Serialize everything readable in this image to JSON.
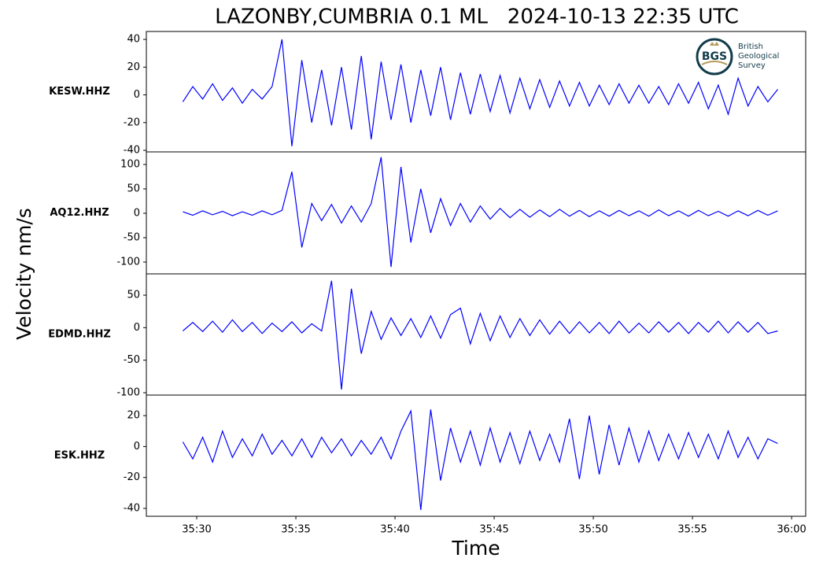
{
  "chart_data": {
    "type": "line",
    "title": "LAZONBY,CUMBRIA 0.1 ML   2024-10-13 22:35 UTC",
    "y_label": "Velocity nm/s",
    "x_label": "Time",
    "logo": {
      "mark": "BGS",
      "lines": [
        "British",
        "Geological",
        "Survey"
      ]
    },
    "xlim": [
      27.46,
      60.71
    ],
    "xticks": [
      {
        "value": 30,
        "label": "35:30"
      },
      {
        "value": 35,
        "label": "35:35"
      },
      {
        "value": 40,
        "label": "35:40"
      },
      {
        "value": 45,
        "label": "35:45"
      },
      {
        "value": 50,
        "label": "35:50"
      },
      {
        "value": 55,
        "label": "35:55"
      },
      {
        "value": 60,
        "label": "36:00"
      }
    ],
    "x": [
      29.3,
      29.8,
      30.3,
      30.8,
      31.3,
      31.8,
      32.3,
      32.8,
      33.3,
      33.8,
      34.3,
      34.8,
      35.3,
      35.8,
      36.3,
      36.8,
      37.3,
      37.8,
      38.3,
      38.8,
      39.3,
      39.8,
      40.3,
      40.8,
      41.3,
      41.8,
      42.3,
      42.8,
      43.3,
      43.8,
      44.3,
      44.8,
      45.3,
      45.8,
      46.3,
      46.8,
      47.3,
      47.8,
      48.3,
      48.8,
      49.3,
      49.8,
      50.3,
      50.8,
      51.3,
      51.8,
      52.3,
      52.8,
      53.3,
      53.8,
      54.3,
      54.8,
      55.3,
      55.8,
      56.3,
      56.8,
      57.3,
      57.8,
      58.3,
      58.8,
      59.3
    ],
    "panels": [
      {
        "name": "KESW.HHZ",
        "color": "#0000ff",
        "ylim": [
          -41.1,
          45.7
        ],
        "yticks": [
          -40,
          -20,
          0,
          20,
          40
        ],
        "values": [
          -5,
          6,
          -3,
          8,
          -4,
          5,
          -6,
          4,
          -3,
          6,
          40,
          -37,
          25,
          -20,
          18,
          -22,
          20,
          -25,
          28,
          -32,
          24,
          -18,
          22,
          -20,
          18,
          -15,
          20,
          -18,
          16,
          -14,
          15,
          -12,
          14,
          -13,
          12,
          -10,
          11,
          -9,
          10,
          -8,
          9,
          -8,
          7,
          -7,
          8,
          -6,
          7,
          -6,
          6,
          -7,
          8,
          -6,
          9,
          -10,
          7,
          -14,
          12,
          -8,
          6,
          -5,
          4
        ]
      },
      {
        "name": "AQ12.HHZ",
        "color": "#0000ff",
        "ylim": [
          -124.2,
          125.8
        ],
        "yticks": [
          -100,
          -50,
          0,
          50,
          100
        ],
        "values": [
          3,
          -4,
          5,
          -3,
          4,
          -5,
          3,
          -4,
          5,
          -3,
          6,
          85,
          -70,
          20,
          -15,
          18,
          -20,
          15,
          -18,
          20,
          115,
          -110,
          95,
          -60,
          50,
          -40,
          30,
          -25,
          20,
          -18,
          15,
          -12,
          10,
          -9,
          8,
          -8,
          7,
          -7,
          8,
          -6,
          6,
          -7,
          5,
          -6,
          6,
          -5,
          5,
          -6,
          7,
          -5,
          5,
          -6,
          6,
          -5,
          4,
          -6,
          5,
          -5,
          6,
          -4,
          5
        ]
      },
      {
        "name": "EDMD.HHZ",
        "color": "#0000ff",
        "ylim": [
          -103.6,
          82.7
        ],
        "yticks": [
          -100,
          -50,
          0,
          50
        ],
        "values": [
          -5,
          8,
          -6,
          10,
          -7,
          12,
          -6,
          8,
          -9,
          7,
          -6,
          9,
          -8,
          6,
          -5,
          72,
          -95,
          60,
          -40,
          25,
          -18,
          15,
          -12,
          14,
          -15,
          18,
          -16,
          20,
          30,
          -25,
          22,
          -20,
          18,
          -15,
          14,
          -12,
          12,
          -10,
          10,
          -9,
          9,
          -8,
          8,
          -9,
          10,
          -8,
          7,
          -8,
          9,
          -7,
          8,
          -9,
          8,
          -7,
          10,
          -8,
          9,
          -7,
          8,
          -9,
          -5
        ]
      },
      {
        "name": "ESK.HHZ",
        "color": "#0000ff",
        "ylim": [
          -45.1,
          33.3
        ],
        "yticks": [
          -40,
          -20,
          0,
          20
        ],
        "values": [
          3,
          -8,
          6,
          -10,
          10,
          -7,
          5,
          -6,
          8,
          -5,
          4,
          -6,
          5,
          -7,
          6,
          -4,
          5,
          -6,
          4,
          -5,
          6,
          -8,
          10,
          23,
          -41,
          24,
          -22,
          12,
          -10,
          10,
          -12,
          12,
          -10,
          9,
          -11,
          10,
          -9,
          8,
          -10,
          18,
          -21,
          20,
          -18,
          14,
          -12,
          12,
          -10,
          10,
          -9,
          8,
          -8,
          9,
          -7,
          8,
          -8,
          10,
          -7,
          6,
          -8,
          5,
          2
        ]
      }
    ]
  }
}
